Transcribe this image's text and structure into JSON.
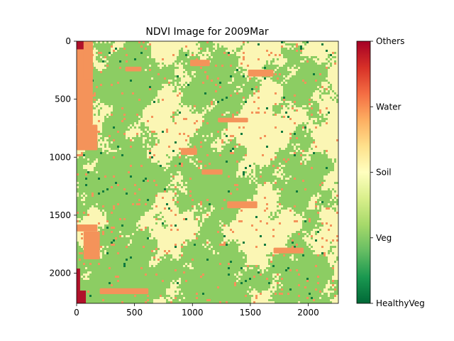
{
  "chart_data": {
    "type": "heatmap",
    "title": "NDVI Image for 2009Mar",
    "x_ticks": [
      "0",
      "500",
      "1000",
      "1500",
      "2000"
    ],
    "y_ticks": [
      "0",
      "500",
      "1000",
      "1500",
      "2000"
    ],
    "x_tick_values": [
      0,
      500,
      1000,
      1500,
      2000
    ],
    "y_tick_values": [
      0,
      500,
      1000,
      1500,
      2000
    ],
    "xlim": [
      0,
      2260
    ],
    "ylim": [
      2260,
      0
    ],
    "grid": false,
    "colormap": "RdYlGn_r",
    "colorbar": {
      "labels": [
        "HealthyVeg",
        "Veg",
        "Soil",
        "Water",
        "Others"
      ],
      "values": [
        0,
        1,
        2,
        3,
        4
      ],
      "colors": [
        "#006837",
        "#a6d96a",
        "#ffffbf",
        "#fdae61",
        "#a50026"
      ]
    },
    "class_colors": {
      "HealthyVeg": "#0f7a3e",
      "Veg": "#8ccd63",
      "Soil": "#fbf6b4",
      "Water": "#f4935a",
      "Others": "#b0112a"
    }
  }
}
